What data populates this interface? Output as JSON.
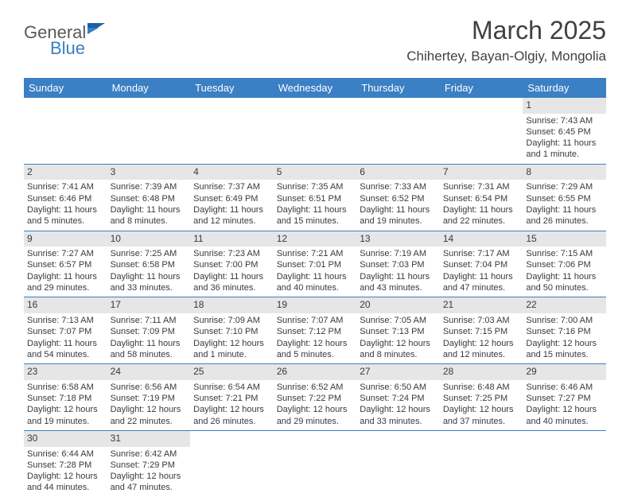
{
  "logo": {
    "part1": "General",
    "part2": "Blue"
  },
  "title": "March 2025",
  "location": "Chihertey, Bayan-Olgiy, Mongolia",
  "colors": {
    "header_bg": "#3b7fc4",
    "header_text": "#ffffff",
    "daynum_bg": "#e6e6e6",
    "border": "#3b7fc4",
    "text": "#3a3a3a"
  },
  "weekdays": [
    "Sunday",
    "Monday",
    "Tuesday",
    "Wednesday",
    "Thursday",
    "Friday",
    "Saturday"
  ],
  "weeks": [
    [
      null,
      null,
      null,
      null,
      null,
      null,
      {
        "d": "1",
        "sr": "Sunrise: 7:43 AM",
        "ss": "Sunset: 6:45 PM",
        "dl1": "Daylight: 11 hours",
        "dl2": "and 1 minute."
      }
    ],
    [
      {
        "d": "2",
        "sr": "Sunrise: 7:41 AM",
        "ss": "Sunset: 6:46 PM",
        "dl1": "Daylight: 11 hours",
        "dl2": "and 5 minutes."
      },
      {
        "d": "3",
        "sr": "Sunrise: 7:39 AM",
        "ss": "Sunset: 6:48 PM",
        "dl1": "Daylight: 11 hours",
        "dl2": "and 8 minutes."
      },
      {
        "d": "4",
        "sr": "Sunrise: 7:37 AM",
        "ss": "Sunset: 6:49 PM",
        "dl1": "Daylight: 11 hours",
        "dl2": "and 12 minutes."
      },
      {
        "d": "5",
        "sr": "Sunrise: 7:35 AM",
        "ss": "Sunset: 6:51 PM",
        "dl1": "Daylight: 11 hours",
        "dl2": "and 15 minutes."
      },
      {
        "d": "6",
        "sr": "Sunrise: 7:33 AM",
        "ss": "Sunset: 6:52 PM",
        "dl1": "Daylight: 11 hours",
        "dl2": "and 19 minutes."
      },
      {
        "d": "7",
        "sr": "Sunrise: 7:31 AM",
        "ss": "Sunset: 6:54 PM",
        "dl1": "Daylight: 11 hours",
        "dl2": "and 22 minutes."
      },
      {
        "d": "8",
        "sr": "Sunrise: 7:29 AM",
        "ss": "Sunset: 6:55 PM",
        "dl1": "Daylight: 11 hours",
        "dl2": "and 26 minutes."
      }
    ],
    [
      {
        "d": "9",
        "sr": "Sunrise: 7:27 AM",
        "ss": "Sunset: 6:57 PM",
        "dl1": "Daylight: 11 hours",
        "dl2": "and 29 minutes."
      },
      {
        "d": "10",
        "sr": "Sunrise: 7:25 AM",
        "ss": "Sunset: 6:58 PM",
        "dl1": "Daylight: 11 hours",
        "dl2": "and 33 minutes."
      },
      {
        "d": "11",
        "sr": "Sunrise: 7:23 AM",
        "ss": "Sunset: 7:00 PM",
        "dl1": "Daylight: 11 hours",
        "dl2": "and 36 minutes."
      },
      {
        "d": "12",
        "sr": "Sunrise: 7:21 AM",
        "ss": "Sunset: 7:01 PM",
        "dl1": "Daylight: 11 hours",
        "dl2": "and 40 minutes."
      },
      {
        "d": "13",
        "sr": "Sunrise: 7:19 AM",
        "ss": "Sunset: 7:03 PM",
        "dl1": "Daylight: 11 hours",
        "dl2": "and 43 minutes."
      },
      {
        "d": "14",
        "sr": "Sunrise: 7:17 AM",
        "ss": "Sunset: 7:04 PM",
        "dl1": "Daylight: 11 hours",
        "dl2": "and 47 minutes."
      },
      {
        "d": "15",
        "sr": "Sunrise: 7:15 AM",
        "ss": "Sunset: 7:06 PM",
        "dl1": "Daylight: 11 hours",
        "dl2": "and 50 minutes."
      }
    ],
    [
      {
        "d": "16",
        "sr": "Sunrise: 7:13 AM",
        "ss": "Sunset: 7:07 PM",
        "dl1": "Daylight: 11 hours",
        "dl2": "and 54 minutes."
      },
      {
        "d": "17",
        "sr": "Sunrise: 7:11 AM",
        "ss": "Sunset: 7:09 PM",
        "dl1": "Daylight: 11 hours",
        "dl2": "and 58 minutes."
      },
      {
        "d": "18",
        "sr": "Sunrise: 7:09 AM",
        "ss": "Sunset: 7:10 PM",
        "dl1": "Daylight: 12 hours",
        "dl2": "and 1 minute."
      },
      {
        "d": "19",
        "sr": "Sunrise: 7:07 AM",
        "ss": "Sunset: 7:12 PM",
        "dl1": "Daylight: 12 hours",
        "dl2": "and 5 minutes."
      },
      {
        "d": "20",
        "sr": "Sunrise: 7:05 AM",
        "ss": "Sunset: 7:13 PM",
        "dl1": "Daylight: 12 hours",
        "dl2": "and 8 minutes."
      },
      {
        "d": "21",
        "sr": "Sunrise: 7:03 AM",
        "ss": "Sunset: 7:15 PM",
        "dl1": "Daylight: 12 hours",
        "dl2": "and 12 minutes."
      },
      {
        "d": "22",
        "sr": "Sunrise: 7:00 AM",
        "ss": "Sunset: 7:16 PM",
        "dl1": "Daylight: 12 hours",
        "dl2": "and 15 minutes."
      }
    ],
    [
      {
        "d": "23",
        "sr": "Sunrise: 6:58 AM",
        "ss": "Sunset: 7:18 PM",
        "dl1": "Daylight: 12 hours",
        "dl2": "and 19 minutes."
      },
      {
        "d": "24",
        "sr": "Sunrise: 6:56 AM",
        "ss": "Sunset: 7:19 PM",
        "dl1": "Daylight: 12 hours",
        "dl2": "and 22 minutes."
      },
      {
        "d": "25",
        "sr": "Sunrise: 6:54 AM",
        "ss": "Sunset: 7:21 PM",
        "dl1": "Daylight: 12 hours",
        "dl2": "and 26 minutes."
      },
      {
        "d": "26",
        "sr": "Sunrise: 6:52 AM",
        "ss": "Sunset: 7:22 PM",
        "dl1": "Daylight: 12 hours",
        "dl2": "and 29 minutes."
      },
      {
        "d": "27",
        "sr": "Sunrise: 6:50 AM",
        "ss": "Sunset: 7:24 PM",
        "dl1": "Daylight: 12 hours",
        "dl2": "and 33 minutes."
      },
      {
        "d": "28",
        "sr": "Sunrise: 6:48 AM",
        "ss": "Sunset: 7:25 PM",
        "dl1": "Daylight: 12 hours",
        "dl2": "and 37 minutes."
      },
      {
        "d": "29",
        "sr": "Sunrise: 6:46 AM",
        "ss": "Sunset: 7:27 PM",
        "dl1": "Daylight: 12 hours",
        "dl2": "and 40 minutes."
      }
    ],
    [
      {
        "d": "30",
        "sr": "Sunrise: 6:44 AM",
        "ss": "Sunset: 7:28 PM",
        "dl1": "Daylight: 12 hours",
        "dl2": "and 44 minutes."
      },
      {
        "d": "31",
        "sr": "Sunrise: 6:42 AM",
        "ss": "Sunset: 7:29 PM",
        "dl1": "Daylight: 12 hours",
        "dl2": "and 47 minutes."
      },
      null,
      null,
      null,
      null,
      null
    ]
  ]
}
